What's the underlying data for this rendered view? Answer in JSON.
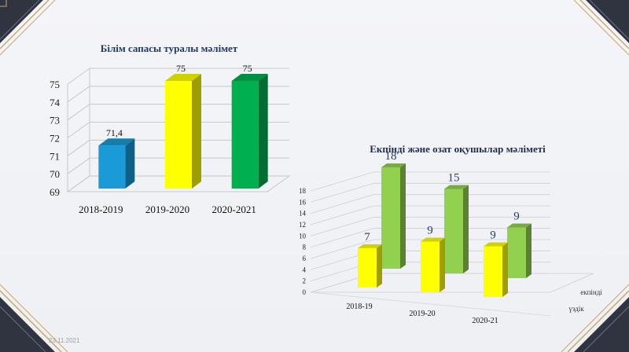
{
  "footer": {
    "date": "23.11.2021"
  },
  "colors": {
    "frame": "#2f3440",
    "gold": "#c9a66b",
    "title": "#1f3864"
  },
  "chart_data": [
    {
      "type": "bar",
      "title": "Білім сапасы туралы мәлімет",
      "categories": [
        "2018-2019",
        "2019-2020",
        "2020-2021"
      ],
      "values": [
        71.4,
        75,
        75
      ],
      "data_labels": [
        "71,4",
        "75",
        "75"
      ],
      "bar_colors": [
        "#1a9ad6",
        "#ffff00",
        "#00b050"
      ],
      "ylim": [
        69,
        75
      ],
      "yticks": [
        "69",
        "70",
        "71",
        "72",
        "73",
        "74",
        "75"
      ],
      "grid": true,
      "three_d": true
    },
    {
      "type": "bar",
      "title": "Екпінді және озат оқушылар мәліметі",
      "categories": [
        "2018-19",
        "2019-20",
        "2020-21"
      ],
      "series": [
        {
          "name": "үздік",
          "values": [
            7,
            9,
            9
          ],
          "color": "#ffff00"
        },
        {
          "name": "екпінді",
          "values": [
            18,
            15,
            9
          ],
          "color": "#92d050"
        }
      ],
      "ylim": [
        0,
        18
      ],
      "yticks": [
        "0",
        "2",
        "4",
        "6",
        "8",
        "10",
        "12",
        "14",
        "16",
        "18"
      ],
      "grid": true,
      "three_d": true
    }
  ]
}
